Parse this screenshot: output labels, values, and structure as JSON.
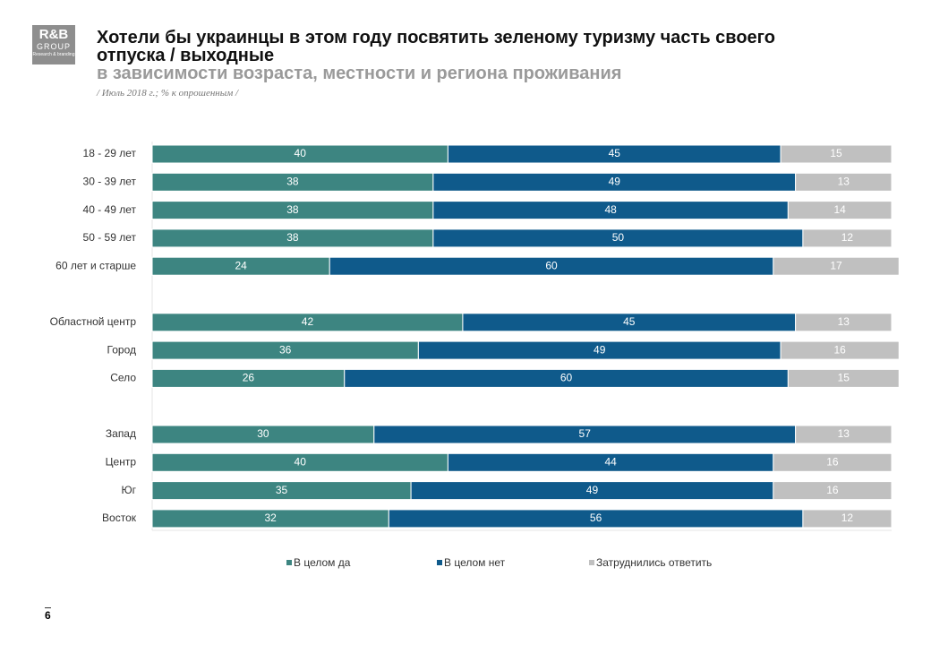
{
  "logo": {
    "name": "R&B",
    "group": "GROUP",
    "tagline": "Research & branding"
  },
  "page_number": 6,
  "chart_data": {
    "type": "bar",
    "orientation": "horizontal",
    "stacked": true,
    "title": "Хотели бы украинцы в этом году посвятить зеленому туризму часть своего отпуска / выходные",
    "subtitle": "в зависимости возраста, местности и региона проживания",
    "note": "/ Июль 2018 г.; % к опрошенным /",
    "categories": [
      "18 - 29 лет",
      "30 - 39 лет",
      "40 - 49 лет",
      "50 - 59 лет",
      "60 лет и старше",
      null,
      "Областной центр",
      "Город",
      "Село",
      null,
      "Запад",
      "Центр",
      "Юг",
      "Восток"
    ],
    "series": [
      {
        "name": "В целом да",
        "color": "#3d8581",
        "values": [
          40,
          38,
          38,
          38,
          24,
          null,
          42,
          36,
          26,
          null,
          30,
          40,
          35,
          32
        ]
      },
      {
        "name": "В целом нет",
        "color": "#0f5a8b",
        "values": [
          45,
          49,
          48,
          50,
          60,
          null,
          45,
          49,
          60,
          null,
          57,
          44,
          49,
          56
        ]
      },
      {
        "name": "Затруднились ответить",
        "color": "#c0c0c0",
        "values": [
          15,
          13,
          14,
          12,
          17,
          null,
          13,
          16,
          15,
          null,
          13,
          16,
          16,
          12
        ]
      }
    ],
    "xlim": [
      0,
      100
    ],
    "legend": "bottom"
  }
}
